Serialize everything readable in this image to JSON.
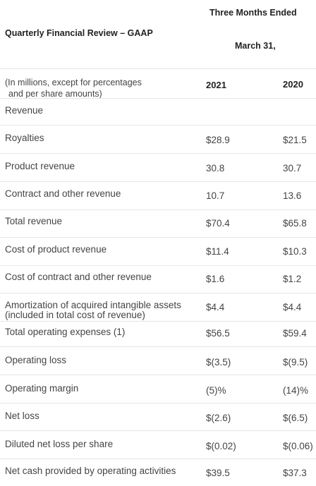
{
  "header": {
    "table_title": "Quarterly Financial Review – GAAP",
    "period_line1": "Three Months Ended",
    "period_line2": "March 31,",
    "units_line1": "(In millions, except for percentages",
    "units_line2": "and per share amounts)",
    "col_2021": "2021",
    "col_2020": "2020",
    "section_label": "Revenue"
  },
  "rows": [
    {
      "label": "Royalties",
      "v2021": "$28.9",
      "v2020": "$21.5"
    },
    {
      "label": "Product revenue",
      "v2021": "30.8",
      "v2020": "30.7"
    },
    {
      "label": "Contract and other revenue",
      "v2021": "10.7",
      "v2020": "13.6"
    },
    {
      "label": "Total revenue",
      "v2021": "$70.4",
      "v2020": "$65.8"
    },
    {
      "label": "Cost of product revenue",
      "v2021": "$11.4",
      "v2020": "$10.3"
    },
    {
      "label": "Cost of contract and other revenue",
      "v2021": "$1.6",
      "v2020": "$1.2"
    },
    {
      "label": "Amortization of acquired intangible assets",
      "label2": "(included in total cost of revenue)",
      "v2021": "$4.4",
      "v2020": "$4.4"
    },
    {
      "label": "Total operating expenses (1)",
      "v2021": "$56.5",
      "v2020": "$59.4"
    },
    {
      "label": "Operating loss",
      "v2021": "$(3.5)",
      "v2020": "$(9.5)"
    },
    {
      "label": "Operating margin",
      "v2021": "(5)%",
      "v2020": "(14)%"
    },
    {
      "label": "Net loss",
      "v2021": "$(2.6)",
      "v2020": "$(6.5)"
    },
    {
      "label": "Diluted net loss per share",
      "v2021": "$(0.02)",
      "v2020": "$(0.06)"
    },
    {
      "label": "Net cash provided by operating activities",
      "v2021": "$39.5",
      "v2020": "$37.3"
    }
  ]
}
